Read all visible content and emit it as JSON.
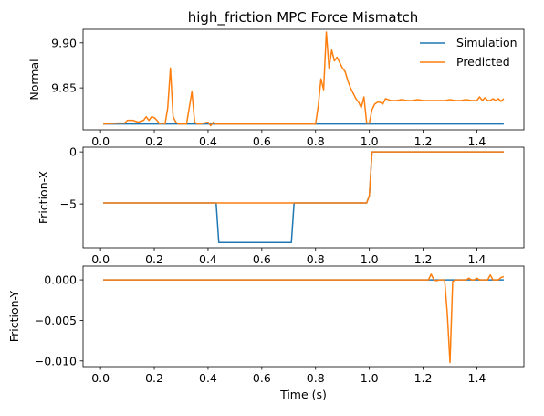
{
  "figure": {
    "title": "high_friction MPC Force Mismatch"
  },
  "colors": {
    "simulation": "#1f77b4",
    "predicted": "#ff7f0e"
  },
  "chart_data": [
    {
      "type": "line",
      "title": "high_friction MPC Force Mismatch",
      "xlabel": "",
      "ylabel": "Normal",
      "xlim": [
        -0.065,
        1.575
      ],
      "ylim": [
        9.8035,
        9.915
      ],
      "xticks": [
        0.0,
        0.2,
        0.4,
        0.6,
        0.8,
        1.0,
        1.2,
        1.4
      ],
      "xtick_labels": [
        "0.0",
        "0.2",
        "0.4",
        "0.6",
        "0.8",
        "1.0",
        "1.2",
        "1.4"
      ],
      "yticks": [
        9.85,
        9.9
      ],
      "ytick_labels": [
        "9.85",
        "9.90"
      ],
      "grid": false,
      "legend": "top-right",
      "series": [
        {
          "name": "Simulation",
          "color": "#1f77b4",
          "x": [
            0.01,
            1.5
          ],
          "y": [
            9.81,
            9.81
          ]
        },
        {
          "name": "Predicted",
          "color": "#ff7f0e",
          "x": [
            0.01,
            0.07,
            0.09,
            0.1,
            0.12,
            0.14,
            0.16,
            0.17,
            0.18,
            0.19,
            0.2,
            0.21,
            0.22,
            0.23,
            0.24,
            0.25,
            0.26,
            0.27,
            0.28,
            0.29,
            0.3,
            0.32,
            0.33,
            0.34,
            0.35,
            0.36,
            0.37,
            0.4,
            0.41,
            0.42,
            0.43,
            0.44,
            0.8,
            0.81,
            0.82,
            0.83,
            0.84,
            0.85,
            0.86,
            0.87,
            0.88,
            0.89,
            0.9,
            0.91,
            0.92,
            0.93,
            0.94,
            0.95,
            0.96,
            0.97,
            0.98,
            0.99,
            1.0,
            1.01,
            1.02,
            1.03,
            1.04,
            1.05,
            1.06,
            1.08,
            1.1,
            1.12,
            1.14,
            1.16,
            1.18,
            1.2,
            1.22,
            1.24,
            1.26,
            1.28,
            1.3,
            1.32,
            1.34,
            1.36,
            1.38,
            1.4,
            1.41,
            1.42,
            1.43,
            1.44,
            1.45,
            1.46,
            1.47,
            1.48,
            1.49,
            1.5
          ],
          "y": [
            9.81,
            9.811,
            9.811,
            9.814,
            9.814,
            9.812,
            9.814,
            9.818,
            9.814,
            9.818,
            9.817,
            9.814,
            9.81,
            9.811,
            9.81,
            9.828,
            9.872,
            9.818,
            9.812,
            9.81,
            9.81,
            9.81,
            9.828,
            9.846,
            9.812,
            9.81,
            9.81,
            9.812,
            9.808,
            9.812,
            9.81,
            9.81,
            9.81,
            9.83,
            9.86,
            9.848,
            9.912,
            9.872,
            9.892,
            9.88,
            9.884,
            9.878,
            9.872,
            9.868,
            9.858,
            9.85,
            9.844,
            9.838,
            9.834,
            9.828,
            9.84,
            9.811,
            9.811,
            9.826,
            9.832,
            9.834,
            9.834,
            9.832,
            9.838,
            9.836,
            9.836,
            9.837,
            9.836,
            9.836,
            9.837,
            9.836,
            9.836,
            9.836,
            9.836,
            9.836,
            9.837,
            9.836,
            9.836,
            9.837,
            9.836,
            9.836,
            9.84,
            9.836,
            9.839,
            9.836,
            9.836,
            9.838,
            9.836,
            9.838,
            9.835,
            9.838
          ]
        }
      ]
    },
    {
      "type": "line",
      "xlabel": "",
      "ylabel": "Friction-X",
      "xlim": [
        -0.065,
        1.575
      ],
      "ylim": [
        -9.2,
        0.45
      ],
      "xticks": [
        0.0,
        0.2,
        0.4,
        0.6,
        0.8,
        1.0,
        1.2,
        1.4
      ],
      "xtick_labels": [
        "0.0",
        "0.2",
        "0.4",
        "0.6",
        "0.8",
        "1.0",
        "1.2",
        "1.4"
      ],
      "yticks": [
        -5,
        0
      ],
      "ytick_labels": [
        "−5",
        "0"
      ],
      "grid": false,
      "series": [
        {
          "name": "Simulation",
          "color": "#1f77b4",
          "x": [
            0.01,
            0.43,
            0.44,
            0.71,
            0.72,
            0.99,
            1.0,
            1.01,
            1.5
          ],
          "y": [
            -4.9,
            -4.9,
            -8.7,
            -8.7,
            -4.9,
            -4.9,
            -4.2,
            0.0,
            0.0
          ]
        },
        {
          "name": "Predicted",
          "color": "#ff7f0e",
          "x": [
            0.01,
            0.99,
            1.0,
            1.01,
            1.5
          ],
          "y": [
            -4.9,
            -4.9,
            -4.2,
            0.0,
            0.0
          ]
        }
      ]
    },
    {
      "type": "line",
      "xlabel": "Time (s)",
      "ylabel": "Friction-Y",
      "xlim": [
        -0.065,
        1.575
      ],
      "ylim": [
        -0.0107,
        0.0017
      ],
      "xticks": [
        0.0,
        0.2,
        0.4,
        0.6,
        0.8,
        1.0,
        1.2,
        1.4
      ],
      "xtick_labels": [
        "0.0",
        "0.2",
        "0.4",
        "0.6",
        "0.8",
        "1.0",
        "1.2",
        "1.4"
      ],
      "yticks": [
        -0.01,
        -0.005,
        0.0
      ],
      "ytick_labels": [
        "−0.010",
        "−0.005",
        "0.000"
      ],
      "grid": false,
      "series": [
        {
          "name": "Simulation",
          "color": "#1f77b4",
          "x": [
            0.01,
            1.5
          ],
          "y": [
            0.0,
            0.0
          ]
        },
        {
          "name": "Predicted",
          "color": "#ff7f0e",
          "x": [
            0.01,
            1.21,
            1.22,
            1.23,
            1.24,
            1.25,
            1.26,
            1.27,
            1.28,
            1.29,
            1.3,
            1.31,
            1.32,
            1.33,
            1.34,
            1.35,
            1.36,
            1.37,
            1.38,
            1.39,
            1.4,
            1.41,
            1.42,
            1.43,
            1.44,
            1.45,
            1.46,
            1.47,
            1.48,
            1.49,
            1.5
          ],
          "y": [
            0.0,
            0.0,
            0.0,
            0.0007,
            0.0,
            -0.0001,
            0.0,
            0.0,
            0.0,
            -0.0042,
            -0.0102,
            -0.0002,
            0.0,
            0.0,
            0.0,
            0.0,
            0.0,
            0.0002,
            0.0,
            0.0,
            0.0002,
            0.0,
            0.0,
            0.0,
            0.0,
            0.0006,
            0.0,
            0.0,
            0.0,
            0.0003,
            0.0004
          ]
        }
      ]
    }
  ]
}
